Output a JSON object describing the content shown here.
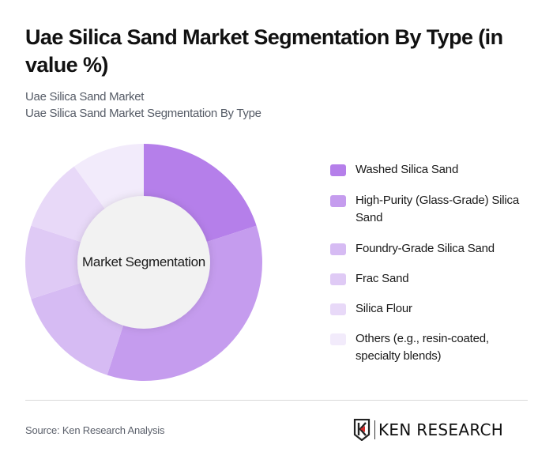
{
  "header": {
    "title": "Uae Silica Sand Market Segmentation By Type (in value %)",
    "subtitle_1": "Uae Silica Sand Market",
    "subtitle_2": "Uae Silica Sand Market Segmentation By Type"
  },
  "chart": {
    "center_label": "Market Segmentation"
  },
  "legend": {
    "items": [
      {
        "label": "Washed Silica Sand",
        "color": "#b57fea"
      },
      {
        "label": "High-Purity (Glass-Grade) Silica Sand",
        "color": "#c59cee"
      },
      {
        "label": "Foundry-Grade Silica Sand",
        "color": "#d6bbf3"
      },
      {
        "label": "Frac Sand",
        "color": "#dfcaf5"
      },
      {
        "label": "Silica Flour",
        "color": "#e8d9f8"
      },
      {
        "label": "Others (e.g., resin-coated, specialty blends)",
        "color": "#f2ebfb"
      }
    ]
  },
  "footer": {
    "source": "Source: Ken Research Analysis",
    "logo_text": "KEN RESEARCH"
  },
  "chart_data": {
    "type": "pie",
    "subtype": "donut",
    "title": "Uae Silica Sand Market Segmentation By Type (in value %)",
    "center_label": "Market Segmentation",
    "categories": [
      "Washed Silica Sand",
      "High-Purity (Glass-Grade) Silica Sand",
      "Foundry-Grade Silica Sand",
      "Frac Sand",
      "Silica Flour",
      "Others (e.g., resin-coated, specialty blends)"
    ],
    "values": [
      20,
      35,
      15,
      10,
      10,
      10
    ],
    "colors": [
      "#b57fea",
      "#c59cee",
      "#d6bbf3",
      "#dfcaf5",
      "#e8d9f8",
      "#f2ebfb"
    ],
    "unit": "%",
    "legend_position": "right",
    "start_angle": "12 o'clock, clockwise"
  }
}
